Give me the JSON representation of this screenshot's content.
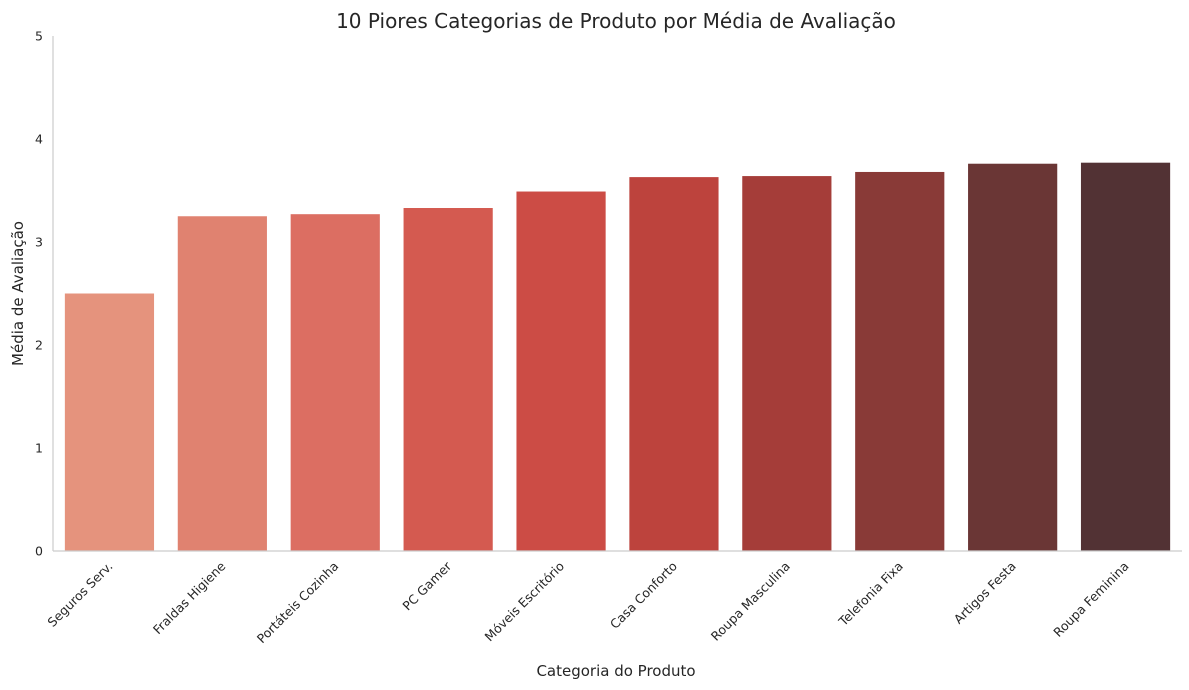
{
  "chart_data": {
    "type": "bar",
    "title": "10 Piores Categorias de Produto por Média de Avaliação",
    "xlabel": "Categoria do Produto",
    "ylabel": "Média de Avaliação",
    "ylim": [
      0,
      5
    ],
    "yticks": [
      "0",
      "1",
      "2",
      "3",
      "4",
      "5"
    ],
    "grid": false,
    "categories": [
      "Seguros Serv.",
      "Fraldas Higiene",
      "Portáteis Cozinha",
      "PC Gamer",
      "Móveis Escritório",
      "Casa Conforto",
      "Roupa Masculina",
      "Telefonia Fixa",
      "Artigos Festa",
      "Roupa Feminina"
    ],
    "values": [
      2.5,
      3.25,
      3.27,
      3.33,
      3.49,
      3.63,
      3.64,
      3.68,
      3.76,
      3.77
    ],
    "colors": [
      "#e5937d",
      "#e08270",
      "#dc6e62",
      "#d45a50",
      "#cc4c45",
      "#bd433d",
      "#a53d39",
      "#893a37",
      "#6a3635",
      "#523234"
    ]
  }
}
